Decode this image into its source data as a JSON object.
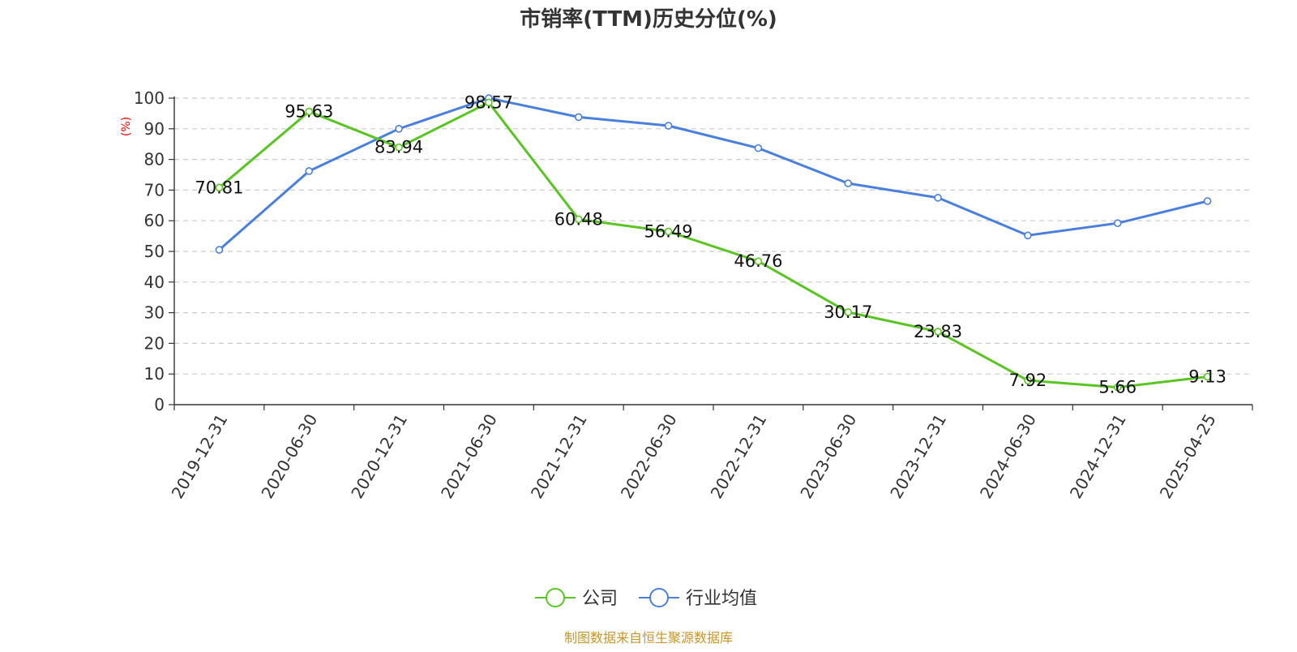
{
  "chart_data": {
    "type": "line",
    "title": "市销率(TTM)历史分位(%)",
    "ylabel": "(%)",
    "xlabel": "",
    "categories": [
      "2019-12-31",
      "2020-06-30",
      "2020-12-31",
      "2021-06-30",
      "2021-12-31",
      "2022-06-30",
      "2022-12-31",
      "2023-06-30",
      "2023-12-31",
      "2024-06-30",
      "2024-12-31",
      "2025-04-25"
    ],
    "y_ticks": [
      "0",
      "10",
      "20",
      "30",
      "40",
      "50",
      "60",
      "70",
      "80",
      "90",
      "100"
    ],
    "ylim": [
      0,
      100
    ],
    "grid": true,
    "legend_position": "bottom-center",
    "series": [
      {
        "name": "公司",
        "color": "#5ac522",
        "values": [
          70.81,
          95.63,
          83.94,
          98.57,
          60.48,
          56.49,
          46.76,
          30.17,
          23.83,
          7.92,
          5.66,
          9.13
        ],
        "labels": [
          "70.81",
          "95.63",
          "83.94",
          "98.57",
          "60.48",
          "56.49",
          "46.76",
          "30.17",
          "23.83",
          "7.92",
          "5.66",
          "9.13"
        ]
      },
      {
        "name": "行业均值",
        "color": "#4a7fdc",
        "values": [
          50.5,
          76.2,
          90.0,
          100.0,
          93.8,
          91.0,
          83.7,
          72.2,
          67.5,
          55.2,
          59.2,
          66.4
        ]
      }
    ],
    "source_note": "制图数据来自恒生聚源数据库"
  }
}
